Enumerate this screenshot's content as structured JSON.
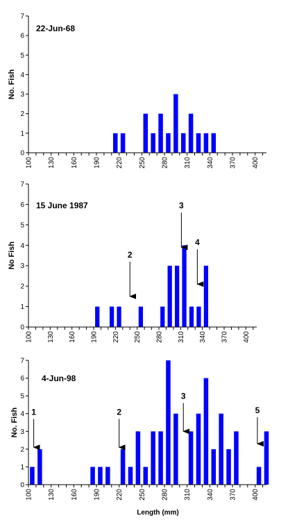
{
  "colors": {
    "bar": "#0000ff",
    "axis": "#000000",
    "arrow": "#000000"
  },
  "chart_data": [
    {
      "type": "bar",
      "title": "22-Jun-68",
      "xlabel": "",
      "ylabel": "No. Fish",
      "ylim": [
        0,
        7
      ],
      "yticks": [
        0,
        1,
        2,
        3,
        4,
        5,
        6,
        7
      ],
      "xlim": [
        100,
        415
      ],
      "xtick_labels": [
        "100",
        "130",
        "160",
        "190",
        "220",
        "250",
        "280",
        "310",
        "340",
        "370",
        "400"
      ],
      "bin_width": 10,
      "grid": false,
      "bars": [
        {
          "x": 215,
          "value": 1
        },
        {
          "x": 225,
          "value": 1
        },
        {
          "x": 255,
          "value": 2
        },
        {
          "x": 265,
          "value": 1
        },
        {
          "x": 275,
          "value": 2
        },
        {
          "x": 285,
          "value": 1
        },
        {
          "x": 295,
          "value": 3
        },
        {
          "x": 305,
          "value": 1
        },
        {
          "x": 315,
          "value": 2
        },
        {
          "x": 325,
          "value": 1
        },
        {
          "x": 335,
          "value": 1
        },
        {
          "x": 345,
          "value": 1
        }
      ],
      "annotations": []
    },
    {
      "type": "bar",
      "title": "15 June 1987",
      "xlabel": "",
      "ylabel": "No Fish",
      "ylim": [
        0,
        7
      ],
      "yticks": [
        0,
        1,
        2,
        3,
        4,
        5,
        6,
        7
      ],
      "xlim": [
        100,
        415
      ],
      "xtick_labels": [
        "100",
        "130",
        "160",
        "190",
        "220",
        "250",
        "280",
        "310",
        "340",
        "370",
        "400"
      ],
      "bin_width": 10,
      "grid": false,
      "bars": [
        {
          "x": 195,
          "value": 1
        },
        {
          "x": 215,
          "value": 1
        },
        {
          "x": 225,
          "value": 1
        },
        {
          "x": 255,
          "value": 1
        },
        {
          "x": 285,
          "value": 1
        },
        {
          "x": 295,
          "value": 3
        },
        {
          "x": 305,
          "value": 3
        },
        {
          "x": 315,
          "value": 4
        },
        {
          "x": 325,
          "value": 1
        },
        {
          "x": 335,
          "value": 1
        },
        {
          "x": 345,
          "value": 3
        }
      ],
      "annotations": [
        {
          "label": "2",
          "x": 240,
          "y_from": 3.2,
          "y_to": 1.5
        },
        {
          "label": "3",
          "x": 311,
          "y_from": 5.6,
          "y_to": 3.9
        },
        {
          "label": "4",
          "x": 333,
          "y_from": 3.8,
          "y_to": 2.1
        }
      ]
    },
    {
      "type": "bar",
      "title": "4-Jun-98",
      "xlabel": "Length (mm)",
      "ylabel": "No. Fish",
      "ylim": [
        0,
        7
      ],
      "yticks": [
        0,
        1,
        2,
        3,
        4,
        5,
        6,
        7
      ],
      "xlim": [
        100,
        415
      ],
      "xtick_labels": [
        "100",
        "130",
        "160",
        "190",
        "220",
        "250",
        "280",
        "310",
        "340",
        "370",
        "400"
      ],
      "bin_width": 10,
      "grid": false,
      "bars": [
        {
          "x": 105,
          "value": 1
        },
        {
          "x": 115,
          "value": 2
        },
        {
          "x": 185,
          "value": 1
        },
        {
          "x": 195,
          "value": 1
        },
        {
          "x": 205,
          "value": 1
        },
        {
          "x": 225,
          "value": 2
        },
        {
          "x": 235,
          "value": 1
        },
        {
          "x": 245,
          "value": 3
        },
        {
          "x": 255,
          "value": 1
        },
        {
          "x": 265,
          "value": 3
        },
        {
          "x": 275,
          "value": 3
        },
        {
          "x": 285,
          "value": 7
        },
        {
          "x": 295,
          "value": 4
        },
        {
          "x": 315,
          "value": 3
        },
        {
          "x": 325,
          "value": 4
        },
        {
          "x": 335,
          "value": 6
        },
        {
          "x": 345,
          "value": 2
        },
        {
          "x": 355,
          "value": 4
        },
        {
          "x": 365,
          "value": 2
        },
        {
          "x": 375,
          "value": 3
        },
        {
          "x": 405,
          "value": 1
        },
        {
          "x": 415,
          "value": 3
        }
      ],
      "annotations": [
        {
          "label": "1",
          "x": 107,
          "y_from": 3.7,
          "y_to": 2.1
        },
        {
          "label": "2",
          "x": 220,
          "y_from": 3.7,
          "y_to": 2.1
        },
        {
          "label": "3",
          "x": 305,
          "y_from": 4.6,
          "y_to": 3.0
        },
        {
          "label": "5",
          "x": 403,
          "y_from": 3.8,
          "y_to": 2.3
        }
      ]
    }
  ]
}
